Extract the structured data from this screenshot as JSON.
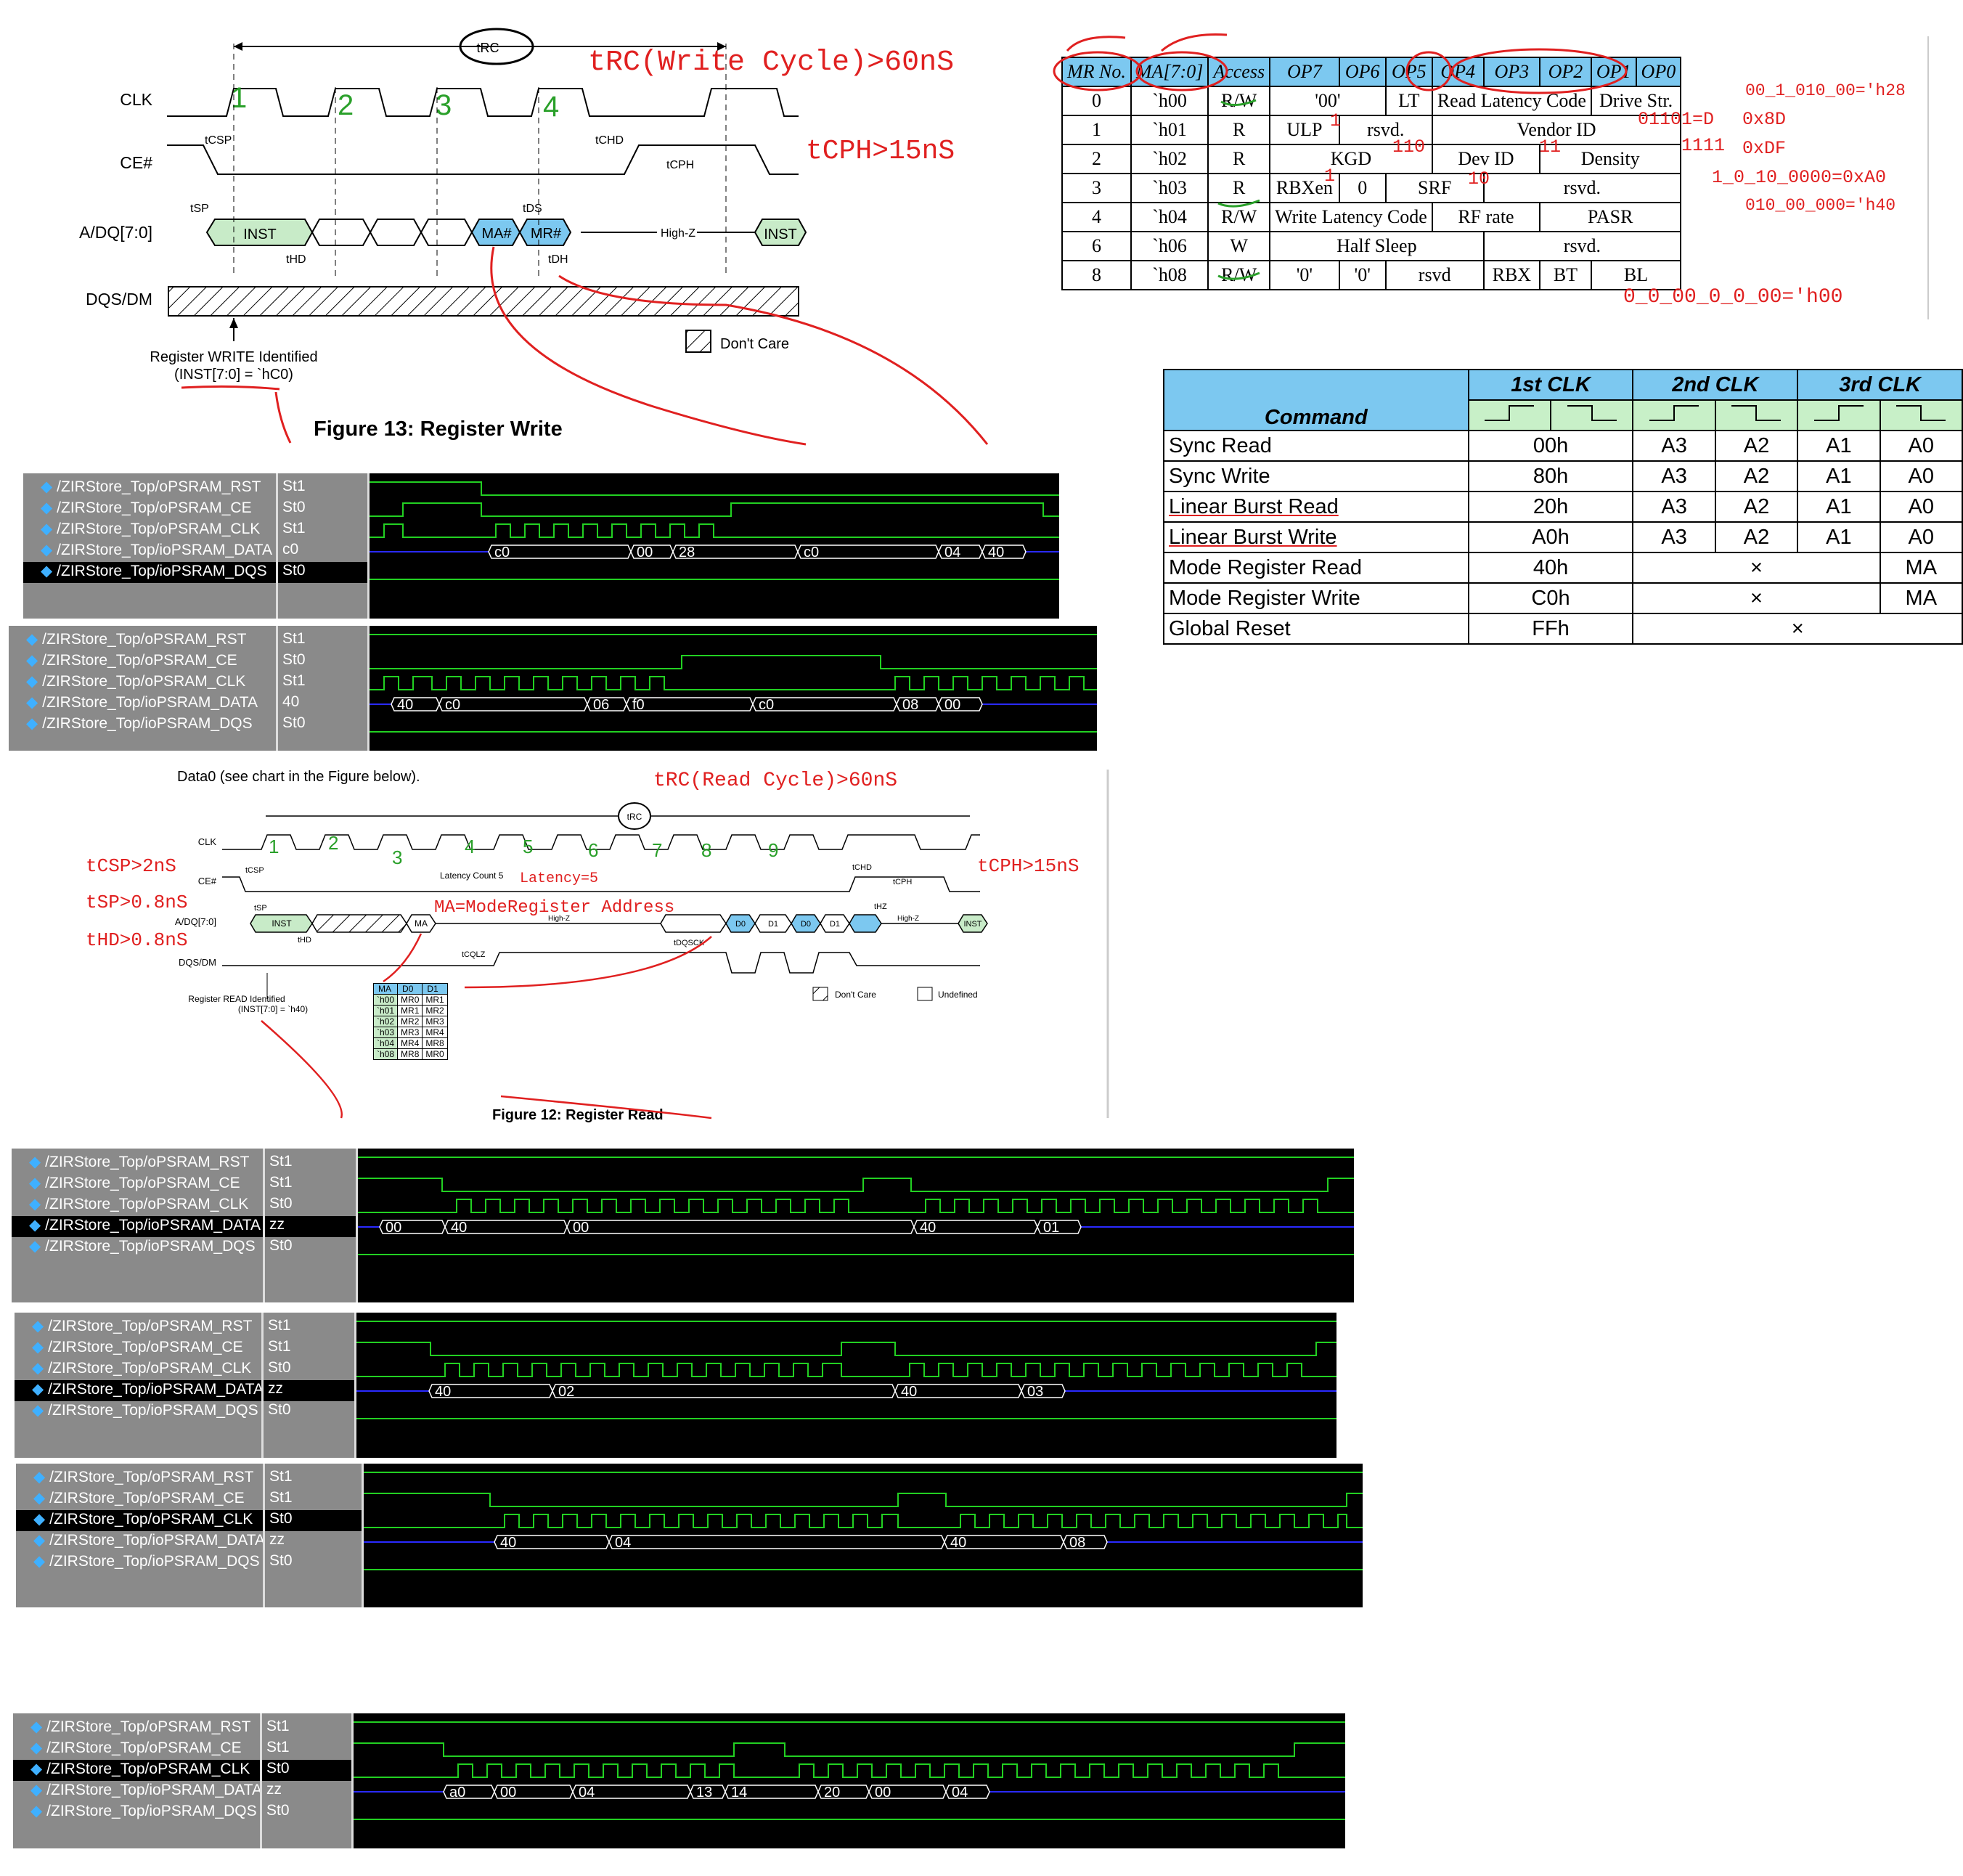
{
  "register_write_figure": {
    "caption": "Figure 13: Register Write",
    "trc_label": "tRC",
    "signals": [
      "CLK",
      "CE#",
      "A/DQ[7:0]",
      "DQS/DM"
    ],
    "timing_labels": [
      "tCSP",
      "tCHD",
      "tCPH",
      "tSP",
      "tHD",
      "tDS",
      "tDH"
    ],
    "bus_labels": [
      "INST",
      "MA#",
      "MR#",
      "High-Z",
      "INST"
    ],
    "dont_care": "Don't Care",
    "register_identified": "Register WRITE Identified",
    "register_identified_inst": "(INST[7:0] = `hC0)",
    "clk_numbers": [
      "1",
      "2",
      "3",
      "4"
    ],
    "annotation_trc": "tRC(Write Cycle)>60nS",
    "annotation_tcph": "tCPH>15nS"
  },
  "mr_table": {
    "headers": [
      "MR No.",
      "MA[7:0]",
      "Access",
      "OP7",
      "OP6",
      "OP5",
      "OP4",
      "OP3",
      "OP2",
      "OP1",
      "OP0"
    ],
    "rows": [
      {
        "no": "0",
        "ma": "`h00",
        "access": "R/W",
        "c1": "'00'",
        "c2": "LT",
        "c3": "Read Latency Code",
        "c4": "Drive Str."
      },
      {
        "no": "1",
        "ma": "`h01",
        "access": "R",
        "c1": "ULP",
        "c2": "rsvd.",
        "c3": "Vendor ID",
        "c4": ""
      },
      {
        "no": "2",
        "ma": "`h02",
        "access": "R",
        "c1": "KGD",
        "c2": "Dev ID",
        "c3": "Density",
        "c4": ""
      },
      {
        "no": "3",
        "ma": "`h03",
        "access": "R",
        "c1": "RBXen",
        "c2": "0",
        "c3": "SRF",
        "c4": "rsvd."
      },
      {
        "no": "4",
        "ma": "`h04",
        "access": "R/W",
        "c1": "Write Latency Code",
        "c2": "RF rate",
        "c3": "PASR",
        "c4": ""
      },
      {
        "no": "6",
        "ma": "`h06",
        "access": "W",
        "c1": "Half Sleep",
        "c2": "rsvd.",
        "c3": "",
        "c4": ""
      },
      {
        "no": "8",
        "ma": "`h08",
        "access": "R/W",
        "c1": "'0'",
        "c2": "'0'",
        "c3": "rsvd",
        "c4": "RBX",
        "c5": "BT",
        "c6": "BL"
      }
    ],
    "annotations": {
      "row0": "00_1_010_00='h28",
      "row1_ulp": "1",
      "row1_vendor": "01101=D",
      "row1": "0x8D",
      "row2_kgd": "110",
      "row2_dev": "11",
      "row2_density": "1111",
      "row2": "0xDF",
      "row3_rbx": "1",
      "row3_srf": "10",
      "row3": "1_0_10_0000=0xA0",
      "row4": "010_00_000='h40",
      "row8": "0_0_00_0_0_00='h00"
    }
  },
  "command_table": {
    "headers": [
      "Command",
      "1st CLK",
      "2nd CLK",
      "3rd CLK"
    ],
    "rows": [
      {
        "cmd": "Sync Read",
        "first": "00h",
        "v1": "A3",
        "v2": "A2",
        "v3": "A1",
        "v4": "A0"
      },
      {
        "cmd": "Sync Write",
        "first": "80h",
        "v1": "A3",
        "v2": "A2",
        "v3": "A1",
        "v4": "A0"
      },
      {
        "cmd": "Linear Burst Read",
        "first": "20h",
        "v1": "A3",
        "v2": "A2",
        "v3": "A1",
        "v4": "A0"
      },
      {
        "cmd": "Linear Burst Write",
        "first": "A0h",
        "v1": "A3",
        "v2": "A2",
        "v3": "A1",
        "v4": "A0"
      },
      {
        "cmd": "Mode Register Read",
        "first": "40h",
        "mid": "×",
        "v4": "MA"
      },
      {
        "cmd": "Mode Register Write",
        "first": "C0h",
        "mid": "×",
        "v4": "MA"
      },
      {
        "cmd": "Global Reset",
        "first": "FFh",
        "mid": "×"
      }
    ]
  },
  "register_read_figure": {
    "caption": "Figure 12: Register Read",
    "intro": "Data0 (see chart in the Figure below).",
    "signals": [
      "CLK",
      "CE#",
      "A/DQ[7:0]",
      "DQS/DM"
    ],
    "latency_label": "Latency Count 5",
    "timing_labels": [
      "tCSP",
      "tSP",
      "tHD",
      "tCHD",
      "tCPH",
      "tHZ",
      "tCQLZ",
      "tDQSCK",
      "tRC"
    ],
    "bus_labels": [
      "INST",
      "MA",
      "High-Z",
      "D0",
      "D1",
      "D0",
      "D1",
      "High-Z",
      "INST"
    ],
    "legend": [
      "Don't Care",
      "Undefined"
    ],
    "register_identified": "Register READ Identified",
    "register_identified_inst": "(INST[7:0] = `h40)",
    "ma_table": {
      "headers": [
        "MA",
        "D0",
        "D1"
      ],
      "rows": [
        [
          "`h00",
          "MR0",
          "MR1"
        ],
        [
          "`h01",
          "MR1",
          "MR2"
        ],
        [
          "`h02",
          "MR2",
          "MR3"
        ],
        [
          "`h03",
          "MR3",
          "MR4"
        ],
        [
          "`h04",
          "MR4",
          "MR8"
        ],
        [
          "`h08",
          "MR8",
          "MR0"
        ]
      ]
    },
    "clk_numbers": [
      "1",
      "2",
      "3",
      "4",
      "5",
      "6",
      "7",
      "8",
      "9"
    ],
    "annotations": {
      "trc": "tRC(Read Cycle)>60nS",
      "tcsp": "tCSP>2nS",
      "tsp": "tSP>0.8nS",
      "thd": "tHD>0.8nS",
      "tcph": "tCPH>15nS",
      "latency": "Latency=5",
      "ma": "MA=ModeRegister Address"
    }
  },
  "waveforms": [
    {
      "signals": [
        "/ZIRStore_Top/oPSRAM_RST",
        "/ZIRStore_Top/oPSRAM_CE",
        "/ZIRStore_Top/oPSRAM_CLK",
        "/ZIRStore_Top/ioPSRAM_DATA",
        "/ZIRStore_Top/ioPSRAM_DQS"
      ],
      "values": [
        "St1",
        "St0",
        "St1",
        "c0",
        "St0"
      ],
      "bus": [
        "c0",
        "00",
        "28",
        "c0",
        "04",
        "40"
      ]
    },
    {
      "signals": [
        "/ZIRStore_Top/oPSRAM_RST",
        "/ZIRStore_Top/oPSRAM_CE",
        "/ZIRStore_Top/oPSRAM_CLK",
        "/ZIRStore_Top/ioPSRAM_DATA",
        "/ZIRStore_Top/ioPSRAM_DQS"
      ],
      "values": [
        "St1",
        "St0",
        "St1",
        "40",
        "St0"
      ],
      "bus": [
        "40",
        "c0",
        "06",
        "f0",
        "c0",
        "08",
        "00"
      ]
    },
    {
      "signals": [
        "/ZIRStore_Top/oPSRAM_RST",
        "/ZIRStore_Top/oPSRAM_CE",
        "/ZIRStore_Top/oPSRAM_CLK",
        "/ZIRStore_Top/ioPSRAM_DATA",
        "/ZIRStore_Top/ioPSRAM_DQS"
      ],
      "values": [
        "St1",
        "St1",
        "St0",
        "zz",
        "St0"
      ],
      "bus": [
        "00",
        "40",
        "00",
        "40",
        "01"
      ]
    },
    {
      "signals": [
        "/ZIRStore_Top/oPSRAM_RST",
        "/ZIRStore_Top/oPSRAM_CE",
        "/ZIRStore_Top/oPSRAM_CLK",
        "/ZIRStore_Top/ioPSRAM_DATA",
        "/ZIRStore_Top/ioPSRAM_DQS"
      ],
      "values": [
        "St1",
        "St1",
        "St0",
        "zz",
        "St0"
      ],
      "bus": [
        "40",
        "02",
        "40",
        "03"
      ]
    },
    {
      "signals": [
        "/ZIRStore_Top/oPSRAM_RST",
        "/ZIRStore_Top/oPSRAM_CE",
        "/ZIRStore_Top/oPSRAM_CLK",
        "/ZIRStore_Top/ioPSRAM_DATA",
        "/ZIRStore_Top/ioPSRAM_DQS"
      ],
      "values": [
        "St1",
        "St1",
        "St0",
        "zz",
        "St0"
      ],
      "bus": [
        "40",
        "04",
        "40",
        "08"
      ]
    },
    {
      "signals": [
        "/ZIRStore_Top/oPSRAM_RST",
        "/ZIRStore_Top/oPSRAM_CE",
        "/ZIRStore_Top/oPSRAM_CLK",
        "/ZIRStore_Top/ioPSRAM_DATA",
        "/ZIRStore_Top/ioPSRAM_DQS"
      ],
      "values": [
        "St1",
        "St1",
        "St0",
        "zz",
        "St0"
      ],
      "bus": [
        "a0",
        "00",
        "04",
        "13",
        "14",
        "20",
        "00",
        "04"
      ]
    }
  ]
}
